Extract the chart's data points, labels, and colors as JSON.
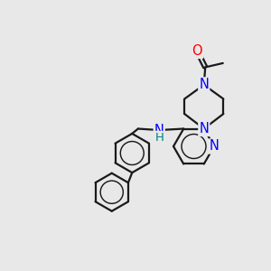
{
  "background_color": "#e8e8e8",
  "atom_colors": {
    "N": "#0000ff",
    "O": "#ff0000",
    "H": "#008080"
  },
  "bond_color": "#1a1a1a",
  "bond_width": 1.6,
  "font_size_atom": 10.5,
  "title": ""
}
